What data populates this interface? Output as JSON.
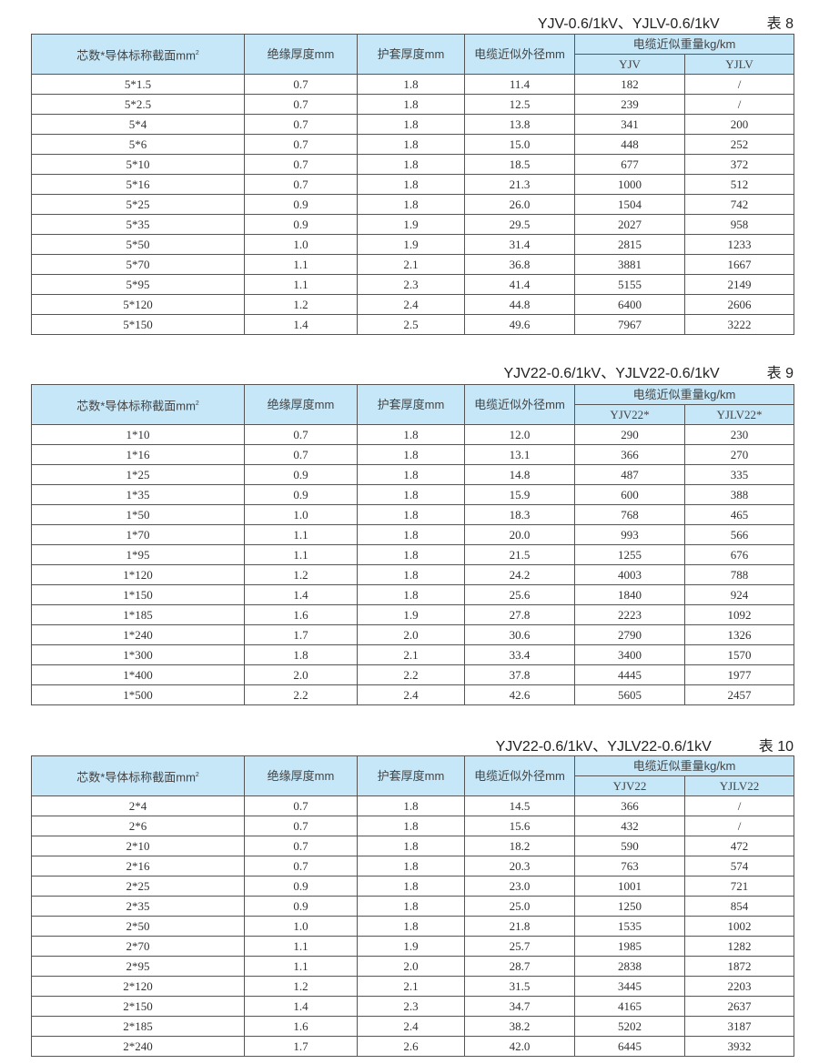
{
  "headers": {
    "spec": "芯数*导体标称截面mm",
    "spec_sup": "2",
    "insulation": "绝缘厚度mm",
    "sheath": "护套厚度mm",
    "diameter": "电缆近似外径mm",
    "weight": "电缆近似重量kg/km"
  },
  "tables": [
    {
      "title": "YJV-0.6/1kV、YJLV-0.6/1kV",
      "number": "表 8",
      "sub_headers": [
        "YJV",
        "YJLV"
      ],
      "rows": [
        [
          "5*1.5",
          "0.7",
          "1.8",
          "11.4",
          "182",
          "/"
        ],
        [
          "5*2.5",
          "0.7",
          "1.8",
          "12.5",
          "239",
          "/"
        ],
        [
          "5*4",
          "0.7",
          "1.8",
          "13.8",
          "341",
          "200"
        ],
        [
          "5*6",
          "0.7",
          "1.8",
          "15.0",
          "448",
          "252"
        ],
        [
          "5*10",
          "0.7",
          "1.8",
          "18.5",
          "677",
          "372"
        ],
        [
          "5*16",
          "0.7",
          "1.8",
          "21.3",
          "1000",
          "512"
        ],
        [
          "5*25",
          "0.9",
          "1.8",
          "26.0",
          "1504",
          "742"
        ],
        [
          "5*35",
          "0.9",
          "1.9",
          "29.5",
          "2027",
          "958"
        ],
        [
          "5*50",
          "1.0",
          "1.9",
          "31.4",
          "2815",
          "1233"
        ],
        [
          "5*70",
          "1.1",
          "2.1",
          "36.8",
          "3881",
          "1667"
        ],
        [
          "5*95",
          "1.1",
          "2.3",
          "41.4",
          "5155",
          "2149"
        ],
        [
          "5*120",
          "1.2",
          "2.4",
          "44.8",
          "6400",
          "2606"
        ],
        [
          "5*150",
          "1.4",
          "2.5",
          "49.6",
          "7967",
          "3222"
        ]
      ]
    },
    {
      "title": "YJV22-0.6/1kV、YJLV22-0.6/1kV",
      "number": "表 9",
      "sub_headers": [
        "YJV22*",
        "YJLV22*"
      ],
      "rows": [
        [
          "1*10",
          "0.7",
          "1.8",
          "12.0",
          "290",
          "230"
        ],
        [
          "1*16",
          "0.7",
          "1.8",
          "13.1",
          "366",
          "270"
        ],
        [
          "1*25",
          "0.9",
          "1.8",
          "14.8",
          "487",
          "335"
        ],
        [
          "1*35",
          "0.9",
          "1.8",
          "15.9",
          "600",
          "388"
        ],
        [
          "1*50",
          "1.0",
          "1.8",
          "18.3",
          "768",
          "465"
        ],
        [
          "1*70",
          "1.1",
          "1.8",
          "20.0",
          "993",
          "566"
        ],
        [
          "1*95",
          "1.1",
          "1.8",
          "21.5",
          "1255",
          "676"
        ],
        [
          "1*120",
          "1.2",
          "1.8",
          "24.2",
          "4003",
          "788"
        ],
        [
          "1*150",
          "1.4",
          "1.8",
          "25.6",
          "1840",
          "924"
        ],
        [
          "1*185",
          "1.6",
          "1.9",
          "27.8",
          "2223",
          "1092"
        ],
        [
          "1*240",
          "1.7",
          "2.0",
          "30.6",
          "2790",
          "1326"
        ],
        [
          "1*300",
          "1.8",
          "2.1",
          "33.4",
          "3400",
          "1570"
        ],
        [
          "1*400",
          "2.0",
          "2.2",
          "37.8",
          "4445",
          "1977"
        ],
        [
          "1*500",
          "2.2",
          "2.4",
          "42.6",
          "5605",
          "2457"
        ]
      ]
    },
    {
      "title": "YJV22-0.6/1kV、YJLV22-0.6/1kV",
      "number": "表 10",
      "sub_headers": [
        "YJV22",
        "YJLV22"
      ],
      "rows": [
        [
          "2*4",
          "0.7",
          "1.8",
          "14.5",
          "366",
          "/"
        ],
        [
          "2*6",
          "0.7",
          "1.8",
          "15.6",
          "432",
          "/"
        ],
        [
          "2*10",
          "0.7",
          "1.8",
          "18.2",
          "590",
          "472"
        ],
        [
          "2*16",
          "0.7",
          "1.8",
          "20.3",
          "763",
          "574"
        ],
        [
          "2*25",
          "0.9",
          "1.8",
          "23.0",
          "1001",
          "721"
        ],
        [
          "2*35",
          "0.9",
          "1.8",
          "25.0",
          "1250",
          "854"
        ],
        [
          "2*50",
          "1.0",
          "1.8",
          "21.8",
          "1535",
          "1002"
        ],
        [
          "2*70",
          "1.1",
          "1.9",
          "25.7",
          "1985",
          "1282"
        ],
        [
          "2*95",
          "1.1",
          "2.0",
          "28.7",
          "2838",
          "1872"
        ],
        [
          "2*120",
          "1.2",
          "2.1",
          "31.5",
          "3445",
          "2203"
        ],
        [
          "2*150",
          "1.4",
          "2.3",
          "34.7",
          "4165",
          "2637"
        ],
        [
          "2*185",
          "1.6",
          "2.4",
          "38.2",
          "5202",
          "3187"
        ],
        [
          "2*240",
          "1.7",
          "2.6",
          "42.0",
          "6445",
          "3932"
        ]
      ]
    }
  ]
}
